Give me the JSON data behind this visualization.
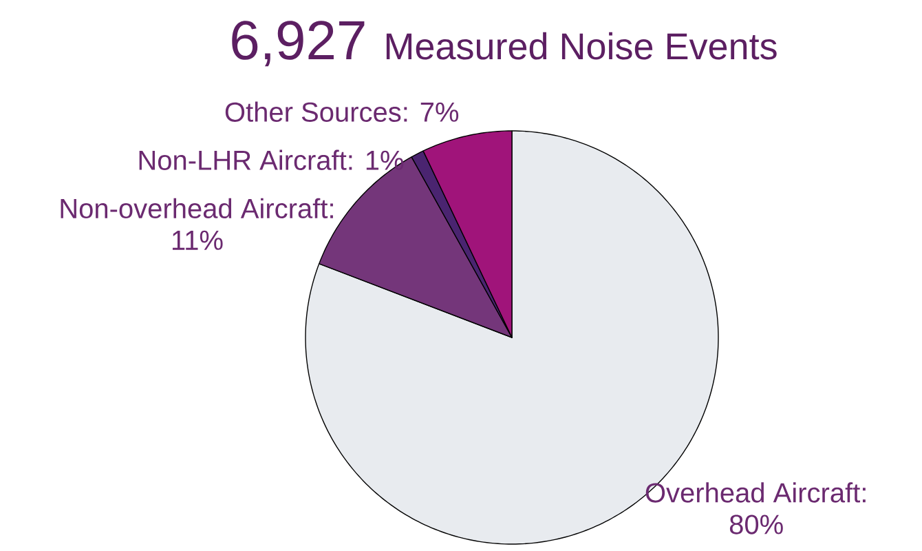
{
  "chart_data": {
    "type": "pie",
    "title": "6,927",
    "subtitle": "Measured Noise Events",
    "categories": [
      "Overhead Aircraft: 80%",
      "Non-overhead Aircraft: 11%",
      "Non-LHR Aircraft: 1%",
      "Other Sources: 7%"
    ],
    "values": [
      80,
      11,
      1,
      7
    ],
    "colors": [
      "#e8ebef",
      "#74367a",
      "#4a2470",
      "#a0147a"
    ]
  }
}
